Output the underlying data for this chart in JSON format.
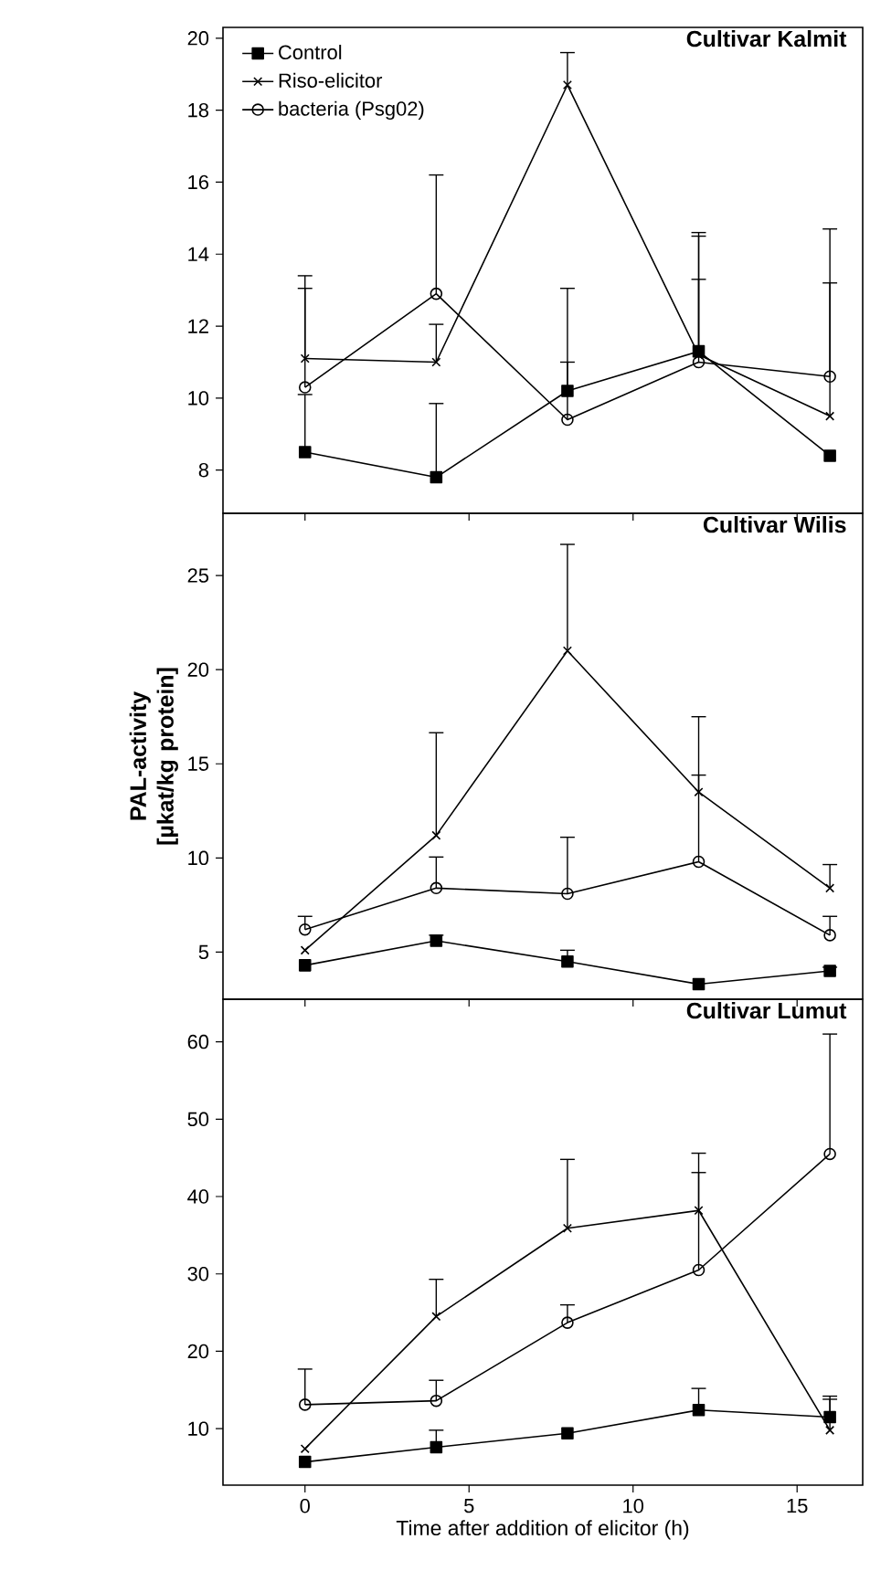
{
  "chart_data": [
    {
      "type": "line",
      "title": "Cultivar Kalmit",
      "x": [
        0,
        4,
        8,
        12,
        16
      ],
      "xlim": [
        -2.5,
        17
      ],
      "xticks": [
        0,
        5,
        10,
        15
      ],
      "ylim": [
        6.8,
        20.3
      ],
      "yticks": [
        8,
        10,
        12,
        14,
        16,
        18,
        20
      ],
      "tick_labels": "y",
      "legend": "top left",
      "series": [
        {
          "name": "Control",
          "color": "#000000",
          "marker": "square",
          "values": [
            8.5,
            7.8,
            10.2,
            11.3,
            8.4
          ],
          "errors": [
            [
              8.5,
              10.1
            ],
            [
              7.8,
              9.85
            ],
            [
              10.2,
              13.05
            ],
            [
              11.3,
              14.6
            ],
            null
          ]
        },
        {
          "name": "Riso-elicitor",
          "color": "#000000",
          "marker": "cross",
          "values": [
            11.1,
            11.0,
            18.7,
            11.2,
            9.5
          ],
          "errors": [
            [
              11.1,
              13.4
            ],
            [
              11.0,
              12.05
            ],
            [
              18.7,
              19.6
            ],
            [
              11.2,
              14.5
            ],
            [
              9.5,
              14.7
            ]
          ]
        },
        {
          "name": "bacteria (Psg02)",
          "color": "#000000",
          "marker": "circle",
          "values": [
            10.3,
            12.9,
            9.4,
            11.0,
            10.6
          ],
          "errors": [
            [
              10.3,
              13.05
            ],
            [
              12.9,
              16.2
            ],
            [
              9.4,
              11.0
            ],
            [
              11.0,
              13.3
            ],
            [
              10.6,
              13.2
            ]
          ]
        }
      ]
    },
    {
      "type": "line",
      "title": "Cultivar Wilis",
      "ylabel": "PAL-activity [µkat/kg protein]",
      "x": [
        0,
        4,
        8,
        12,
        16
      ],
      "xlim": [
        -2.5,
        17
      ],
      "xticks": [
        0,
        5,
        10,
        15
      ],
      "ylim": [
        2.5,
        28.3
      ],
      "yticks": [
        5,
        10,
        15,
        20,
        25
      ],
      "tick_labels": "y",
      "series": [
        {
          "color": "#000000",
          "marker": "square",
          "values": [
            4.3,
            5.6,
            4.5,
            3.3,
            4.0
          ],
          "errors": [
            null,
            [
              5.6,
              5.9
            ],
            [
              4.5,
              5.1
            ],
            null,
            [
              4.0,
              4.2
            ]
          ]
        },
        {
          "color": "#000000",
          "marker": "cross",
          "values": [
            5.1,
            11.2,
            21.0,
            13.5,
            8.4
          ],
          "errors": [
            null,
            [
              11.2,
              16.65
            ],
            [
              21.0,
              26.65
            ],
            [
              13.5,
              17.5
            ],
            [
              8.4,
              9.65
            ]
          ]
        },
        {
          "color": "#000000",
          "marker": "circle",
          "values": [
            6.2,
            8.4,
            8.1,
            9.8,
            5.9
          ],
          "errors": [
            [
              6.2,
              6.9
            ],
            [
              8.4,
              10.05
            ],
            [
              8.1,
              11.1
            ],
            [
              9.8,
              14.4
            ],
            [
              5.9,
              6.9
            ]
          ]
        }
      ]
    },
    {
      "type": "line",
      "title": "Cultivar Lumut",
      "xlabel": "Time after addition of elicitor (h)",
      "x": [
        0,
        4,
        8,
        12,
        16
      ],
      "xlim": [
        -2.5,
        17
      ],
      "xticks": [
        0,
        5,
        10,
        15
      ],
      "ylim": [
        2.7,
        65.5
      ],
      "yticks": [
        10,
        20,
        30,
        40,
        50,
        60
      ],
      "series": [
        {
          "color": "#000000",
          "marker": "square",
          "values": [
            5.7,
            7.6,
            9.4,
            12.4,
            11.5
          ],
          "errors": [
            null,
            [
              7.6,
              9.8
            ],
            null,
            [
              12.4,
              15.2
            ],
            [
              11.5,
              14.2
            ]
          ]
        },
        {
          "color": "#000000",
          "marker": "cross",
          "values": [
            7.4,
            24.5,
            35.9,
            38.2,
            9.8
          ],
          "errors": [
            null,
            [
              24.5,
              29.3
            ],
            [
              35.9,
              44.8
            ],
            [
              38.2,
              45.6
            ],
            [
              9.8,
              13.8
            ]
          ]
        },
        {
          "color": "#000000",
          "marker": "circle",
          "values": [
            13.1,
            13.6,
            23.7,
            30.5,
            45.5
          ],
          "errors": [
            [
              13.1,
              17.7
            ],
            [
              13.6,
              16.25
            ],
            [
              23.7,
              26.0
            ],
            [
              30.5,
              43.1
            ],
            [
              45.5,
              61
            ]
          ]
        }
      ]
    }
  ]
}
